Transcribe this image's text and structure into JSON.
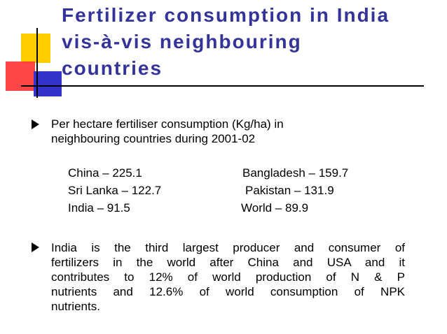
{
  "title": {
    "lines": [
      "Fertilizer consumption in India",
      "vis-à-vis neighbouring",
      "countries"
    ]
  },
  "bullets": [
    {
      "lines": [
        "Per hectare fertiliser consumption (Kg/ha) in",
        "neighbouring countries during 2001-02"
      ]
    },
    {
      "lines": [
        "India is the third largest producer and consumer of",
        "fertilizers in the world after China and USA and it",
        "contributes to 12% of world production of N & P",
        "nutrients and 12.6% of world consumption of NPK",
        "nutrients."
      ]
    }
  ],
  "pairs": [
    [
      "China – 225.1",
      "Bangladesh – 159.7"
    ],
    [
      "Sri Lanka – 122.7",
      "Pakistan – 131.9"
    ],
    [
      "India – 91.5",
      "World – 89.9"
    ]
  ]
}
